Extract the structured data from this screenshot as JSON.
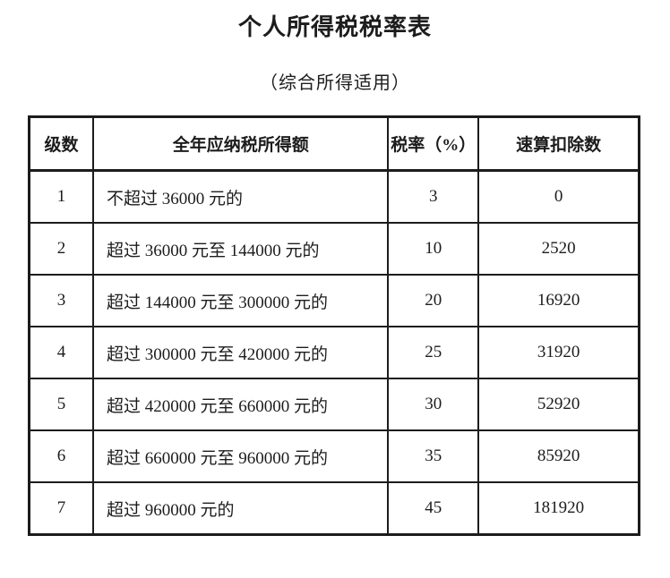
{
  "page": {
    "title": "个人所得税税率表",
    "subtitle": "（综合所得适用）"
  },
  "colors": {
    "text": "#1c1c1c",
    "border": "#1c1c1c",
    "background": "#ffffff"
  },
  "table": {
    "headers": {
      "level": "级数",
      "income": "全年应纳税所得额",
      "rate": "税率（%）",
      "deduction": "速算扣除数"
    },
    "rows": [
      {
        "level": "1",
        "income": "不超过 36000 元的",
        "rate": "3",
        "deduction": "0"
      },
      {
        "level": "2",
        "income": "超过 36000 元至 144000 元的",
        "rate": "10",
        "deduction": "2520"
      },
      {
        "level": "3",
        "income": "超过 144000 元至 300000 元的",
        "rate": "20",
        "deduction": "16920"
      },
      {
        "level": "4",
        "income": "超过 300000 元至 420000 元的",
        "rate": "25",
        "deduction": "31920"
      },
      {
        "level": "5",
        "income": "超过 420000 元至 660000 元的",
        "rate": "30",
        "deduction": "52920"
      },
      {
        "level": "6",
        "income": "超过 660000 元至 960000 元的",
        "rate": "35",
        "deduction": "85920"
      },
      {
        "level": "7",
        "income": "超过 960000 元的",
        "rate": "45",
        "deduction": "181920"
      }
    ]
  }
}
